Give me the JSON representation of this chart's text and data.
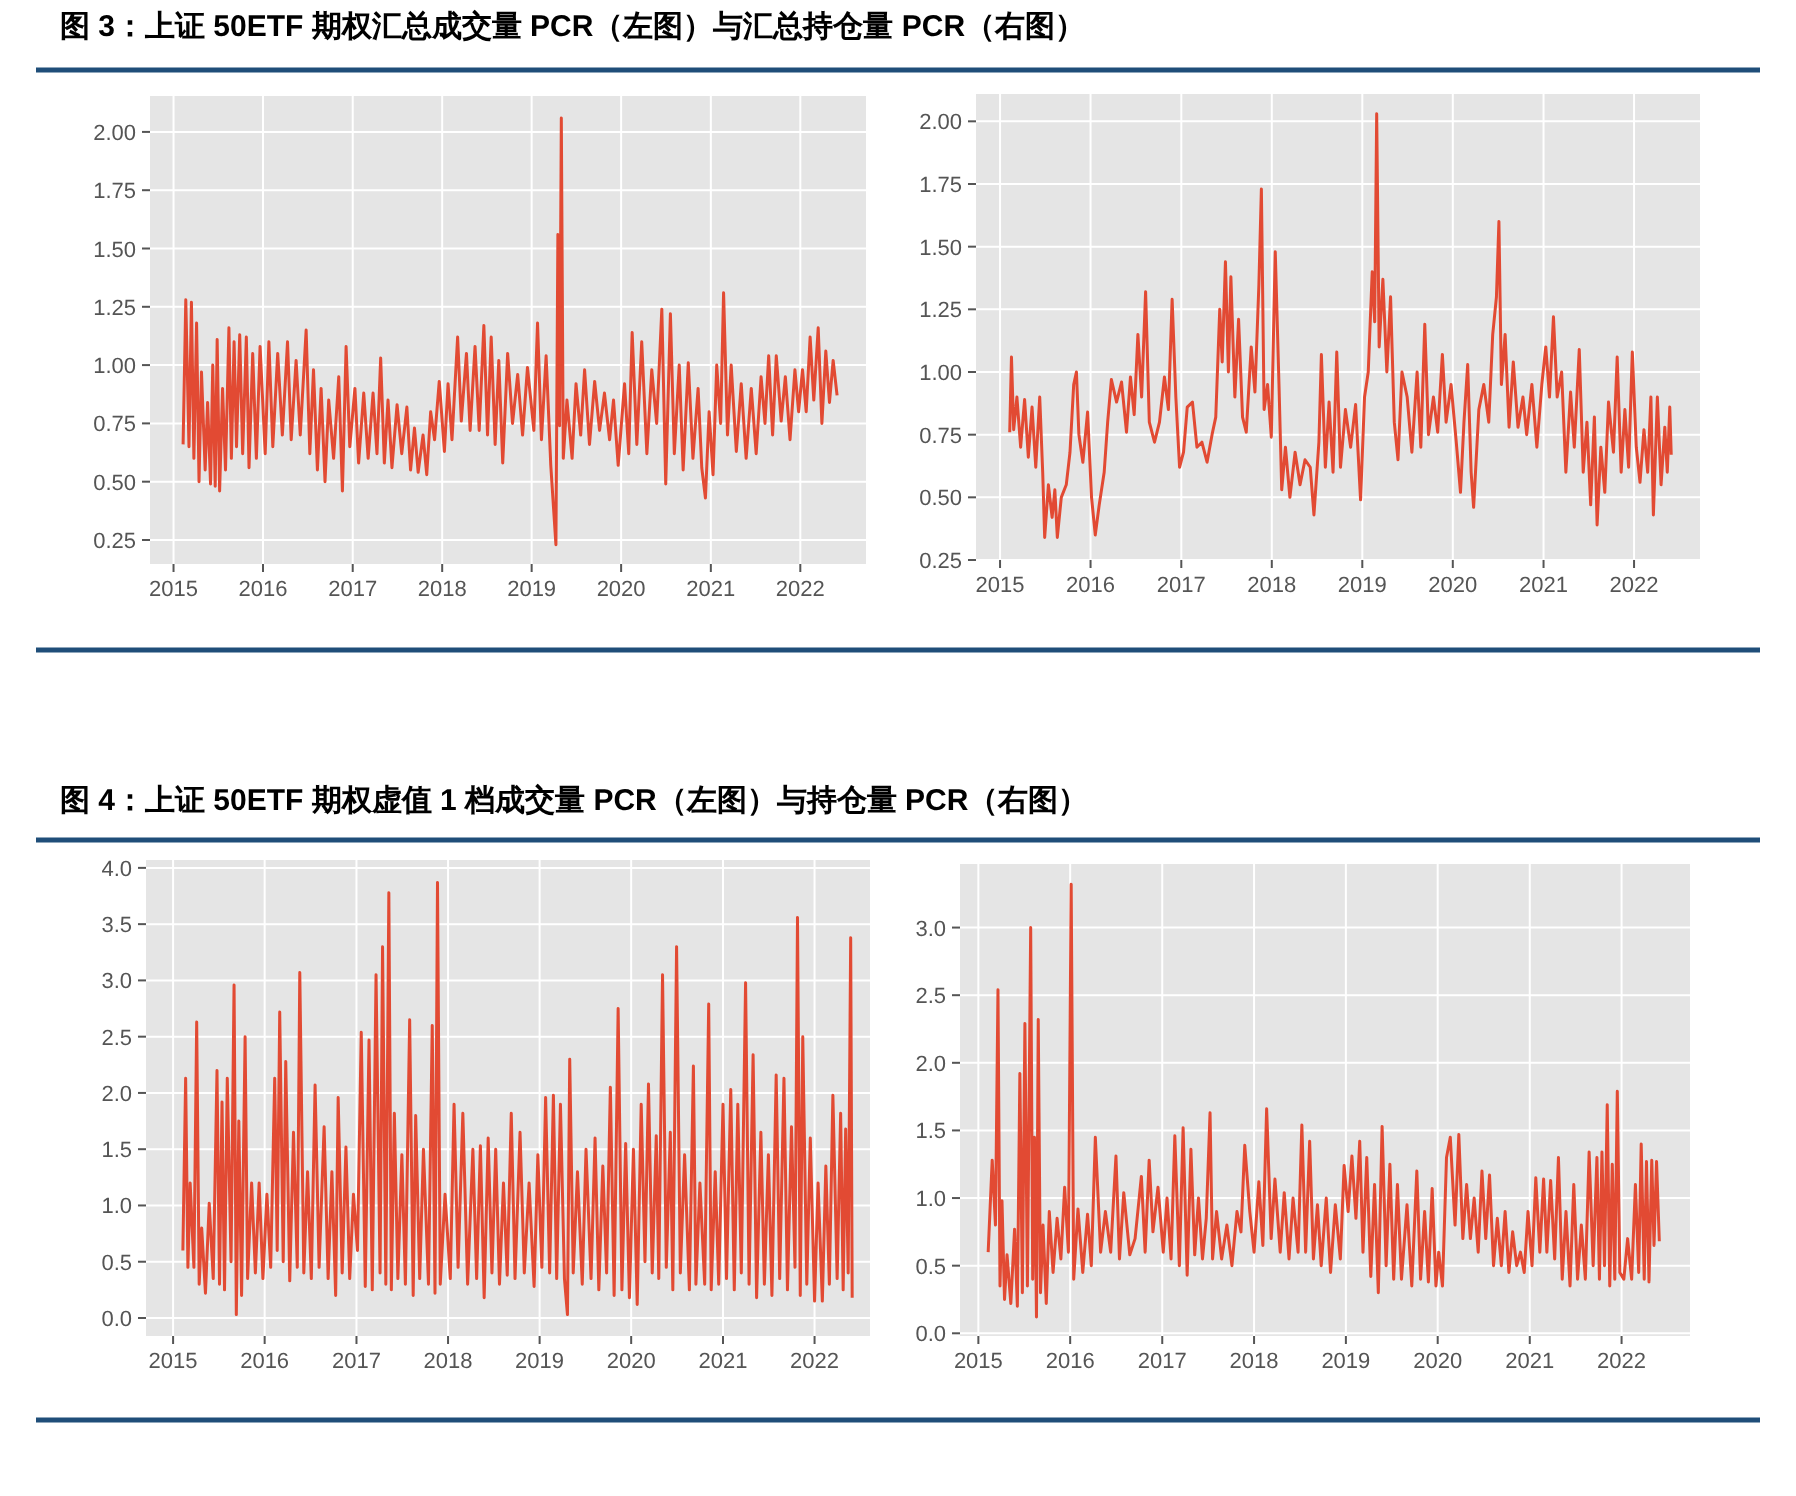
{
  "chart_data": [
    {
      "type": "line",
      "title": "图 3：上证 50ETF 期权汇总成交量 PCR（左图）与汇总持仓量 PCR（右图）",
      "xlim": [
        "2014-09-27",
        "2022-09-26"
      ],
      "xticks": [
        "2015",
        "2016",
        "2017",
        "2018",
        "2019",
        "2020",
        "2021",
        "2022"
      ],
      "ylim": [
        0.147,
        2.154
      ],
      "yticks": [
        {
          "value": 0.25,
          "label": "0.25"
        },
        {
          "value": 0.5,
          "label": "0.50"
        },
        {
          "value": 0.75,
          "label": "0.75"
        },
        {
          "value": 1,
          "label": "1.00"
        },
        {
          "value": 1.25,
          "label": "1.25"
        },
        {
          "value": 1.5,
          "label": "1.50"
        },
        {
          "value": 1.75,
          "label": "1.75"
        },
        {
          "value": 2,
          "label": "2.00"
        }
      ],
      "grid": true,
      "series": [
        {
          "color": "#e24a33",
          "x": [
            "2015-02-09",
            "2015-02-20",
            "2015-03-05",
            "2015-03-15",
            "2015-03-25",
            "2015-04-05",
            "2015-04-15",
            "2015-04-25",
            "2015-05-10",
            "2015-05-20",
            "2015-06-01",
            "2015-06-10",
            "2015-06-20",
            "2015-06-28",
            "2015-07-08",
            "2015-07-20",
            "2015-08-01",
            "2015-08-15",
            "2015-08-25",
            "2015-09-05",
            "2015-09-15",
            "2015-09-28",
            "2015-10-10",
            "2015-10-25",
            "2015-11-05",
            "2015-11-20",
            "2015-12-05",
            "2015-12-20",
            "2016-01-10",
            "2016-01-25",
            "2016-02-10",
            "2016-03-01",
            "2016-03-20",
            "2016-04-10",
            "2016-04-25",
            "2016-05-15",
            "2016-06-01",
            "2016-06-25",
            "2016-07-10",
            "2016-07-25",
            "2016-08-10",
            "2016-08-25",
            "2016-09-10",
            "2016-09-25",
            "2016-10-15",
            "2016-11-05",
            "2016-11-20",
            "2016-12-05",
            "2016-12-20",
            "2017-01-10",
            "2017-01-25",
            "2017-02-15",
            "2017-03-05",
            "2017-03-25",
            "2017-04-10",
            "2017-04-25",
            "2017-05-10",
            "2017-05-25",
            "2017-06-10",
            "2017-07-01",
            "2017-07-20",
            "2017-08-10",
            "2017-08-25",
            "2017-09-10",
            "2017-09-25",
            "2017-10-15",
            "2017-10-30",
            "2017-11-15",
            "2017-12-01",
            "2017-12-20",
            "2018-01-10",
            "2018-01-25",
            "2018-02-10",
            "2018-03-05",
            "2018-03-20",
            "2018-04-10",
            "2018-04-25",
            "2018-05-15",
            "2018-06-01",
            "2018-06-20",
            "2018-07-05",
            "2018-07-20",
            "2018-08-05",
            "2018-08-20",
            "2018-09-05",
            "2018-09-25",
            "2018-10-15",
            "2018-11-05",
            "2018-11-25",
            "2018-12-15",
            "2019-01-10",
            "2019-01-25",
            "2019-02-10",
            "2019-03-01",
            "2019-03-20",
            "2019-04-10",
            "2019-04-18",
            "2019-04-25",
            "2019-05-02",
            "2019-05-10",
            "2019-05-25",
            "2019-06-15",
            "2019-07-01",
            "2019-07-20",
            "2019-08-05",
            "2019-08-25",
            "2019-09-15",
            "2019-10-05",
            "2019-10-25",
            "2019-11-15",
            "2019-12-01",
            "2019-12-20",
            "2020-01-15",
            "2020-02-01",
            "2020-02-15",
            "2020-03-05",
            "2020-03-25",
            "2020-04-15",
            "2020-05-05",
            "2020-05-25",
            "2020-06-15",
            "2020-07-01",
            "2020-07-20",
            "2020-08-05",
            "2020-08-25",
            "2020-09-10",
            "2020-10-01",
            "2020-10-20",
            "2020-11-10",
            "2020-11-25",
            "2020-12-10",
            "2020-12-25",
            "2021-01-10",
            "2021-01-25",
            "2021-02-10",
            "2021-02-22",
            "2021-03-10",
            "2021-03-25",
            "2021-04-15",
            "2021-05-05",
            "2021-05-25",
            "2021-06-15",
            "2021-07-05",
            "2021-07-25",
            "2021-08-10",
            "2021-08-25",
            "2021-09-10",
            "2021-09-25",
            "2021-10-15",
            "2021-11-01",
            "2021-11-20",
            "2021-12-10",
            "2021-12-25",
            "2022-01-10",
            "2022-01-25",
            "2022-02-10",
            "2022-02-25",
            "2022-03-15",
            "2022-03-30",
            "2022-04-15",
            "2022-04-30",
            "2022-05-15",
            "2022-05-31"
          ],
          "values": [
            0.66,
            1.28,
            0.65,
            1.27,
            0.6,
            1.18,
            0.5,
            0.97,
            0.55,
            0.84,
            0.49,
            1.0,
            0.48,
            1.11,
            0.46,
            0.9,
            0.55,
            1.16,
            0.6,
            1.1,
            0.65,
            1.13,
            0.62,
            1.12,
            0.56,
            1.05,
            0.6,
            1.08,
            0.62,
            1.1,
            0.65,
            1.05,
            0.7,
            1.1,
            0.68,
            1.02,
            0.7,
            1.15,
            0.62,
            0.98,
            0.55,
            0.9,
            0.5,
            0.85,
            0.6,
            0.95,
            0.46,
            1.08,
            0.65,
            0.9,
            0.58,
            0.88,
            0.6,
            0.88,
            0.62,
            1.03,
            0.58,
            0.85,
            0.56,
            0.83,
            0.62,
            0.82,
            0.55,
            0.73,
            0.54,
            0.7,
            0.53,
            0.8,
            0.68,
            0.93,
            0.63,
            0.92,
            0.68,
            1.12,
            0.76,
            1.05,
            0.72,
            1.08,
            0.72,
            1.17,
            0.7,
            1.12,
            0.66,
            1.02,
            0.58,
            1.05,
            0.75,
            0.96,
            0.7,
            0.99,
            0.72,
            1.18,
            0.68,
            1.04,
            0.57,
            0.23,
            1.56,
            0.74,
            2.06,
            0.6,
            0.85,
            0.6,
            0.92,
            0.7,
            0.98,
            0.66,
            0.93,
            0.72,
            0.88,
            0.68,
            0.85,
            0.57,
            0.92,
            0.62,
            1.14,
            0.66,
            1.1,
            0.62,
            0.98,
            0.75,
            1.24,
            0.49,
            1.22,
            0.62,
            1.0,
            0.55,
            1.01,
            0.6,
            0.9,
            0.56,
            0.43,
            0.8,
            0.53,
            1.0,
            0.75,
            1.31,
            0.7,
            1.0,
            0.63,
            0.92,
            0.6,
            0.9,
            0.62,
            0.95,
            0.75,
            1.04,
            0.7,
            1.04,
            0.76,
            0.95,
            0.68,
            0.98,
            0.8,
            0.98,
            0.8,
            1.12,
            0.85,
            1.16,
            0.75,
            1.06,
            0.84,
            1.02,
            0.87
          ]
        }
      ]
    },
    {
      "type": "line",
      "xlim": [
        "2014-09-26",
        "2022-09-24"
      ],
      "xticks": [
        "2015",
        "2016",
        "2017",
        "2018",
        "2019",
        "2020",
        "2021",
        "2022"
      ],
      "ylim": [
        0.25,
        2.109
      ],
      "yticks": [
        {
          "value": 0.25,
          "label": "0.25"
        },
        {
          "value": 0.5,
          "label": "0.50"
        },
        {
          "value": 0.75,
          "label": "0.75"
        },
        {
          "value": 1,
          "label": "1.00"
        },
        {
          "value": 1.25,
          "label": "1.25"
        },
        {
          "value": 1.5,
          "label": "1.50"
        },
        {
          "value": 1.75,
          "label": "1.75"
        },
        {
          "value": 2,
          "label": "2.00"
        }
      ],
      "grid": true,
      "series": [
        {
          "color": "#e24a33",
          "x": [
            "2015-02-09",
            "2015-02-16",
            "2015-02-25",
            "2015-03-10",
            "2015-03-25",
            "2015-04-10",
            "2015-04-25",
            "2015-05-10",
            "2015-05-25",
            "2015-06-10",
            "2015-06-22",
            "2015-06-30",
            "2015-07-15",
            "2015-07-30",
            "2015-08-10",
            "2015-08-20",
            "2015-09-05",
            "2015-09-25",
            "2015-10-10",
            "2015-10-25",
            "2015-11-05",
            "2015-11-15",
            "2015-12-01",
            "2015-12-20",
            "2016-01-05",
            "2016-01-20",
            "2016-02-05",
            "2016-02-25",
            "2016-03-10",
            "2016-03-25",
            "2016-04-15",
            "2016-05-05",
            "2016-05-25",
            "2016-06-10",
            "2016-06-25",
            "2016-07-10",
            "2016-07-25",
            "2016-08-10",
            "2016-08-25",
            "2016-09-15",
            "2016-10-05",
            "2016-10-25",
            "2016-11-10",
            "2016-11-25",
            "2016-12-10",
            "2016-12-25",
            "2017-01-10",
            "2017-01-25",
            "2017-02-15",
            "2017-03-05",
            "2017-03-25",
            "2017-04-15",
            "2017-05-05",
            "2017-05-20",
            "2017-06-05",
            "2017-06-15",
            "2017-06-28",
            "2017-07-10",
            "2017-07-20",
            "2017-08-05",
            "2017-08-20",
            "2017-09-05",
            "2017-09-20",
            "2017-10-10",
            "2017-10-25",
            "2017-11-10",
            "2017-11-20",
            "2017-12-01",
            "2017-12-15",
            "2017-12-30",
            "2018-01-15",
            "2018-01-30",
            "2018-02-10",
            "2018-02-25",
            "2018-03-15",
            "2018-04-05",
            "2018-04-25",
            "2018-05-15",
            "2018-06-05",
            "2018-06-20",
            "2018-07-10",
            "2018-07-20",
            "2018-08-05",
            "2018-08-20",
            "2018-09-05",
            "2018-09-20",
            "2018-10-05",
            "2018-10-25",
            "2018-11-15",
            "2018-12-05",
            "2018-12-25",
            "2019-01-10",
            "2019-01-25",
            "2019-02-10",
            "2019-02-20",
            "2019-02-28",
            "2019-03-10",
            "2019-03-25",
            "2019-04-10",
            "2019-04-25",
            "2019-05-10",
            "2019-05-25",
            "2019-06-10",
            "2019-07-01",
            "2019-07-20",
            "2019-08-10",
            "2019-08-25",
            "2019-09-10",
            "2019-09-25",
            "2019-10-15",
            "2019-11-01",
            "2019-11-20",
            "2019-12-05",
            "2019-12-25",
            "2020-01-15",
            "2020-02-01",
            "2020-02-15",
            "2020-03-01",
            "2020-03-15",
            "2020-03-25",
            "2020-04-15",
            "2020-05-05",
            "2020-05-25",
            "2020-06-10",
            "2020-06-25",
            "2020-07-05",
            "2020-07-15",
            "2020-07-30",
            "2020-08-15",
            "2020-09-01",
            "2020-09-20",
            "2020-10-10",
            "2020-10-25",
            "2020-11-15",
            "2020-12-05",
            "2020-12-25",
            "2021-01-10",
            "2021-01-25",
            "2021-02-10",
            "2021-02-25",
            "2021-03-15",
            "2021-04-01",
            "2021-04-20",
            "2021-05-05",
            "2021-05-25",
            "2021-06-10",
            "2021-06-25",
            "2021-07-10",
            "2021-07-25",
            "2021-08-05",
            "2021-08-20",
            "2021-09-05",
            "2021-09-20",
            "2021-10-10",
            "2021-10-25",
            "2021-11-10",
            "2021-11-25",
            "2021-12-10",
            "2021-12-25",
            "2022-01-10",
            "2022-01-25",
            "2022-02-10",
            "2022-02-25",
            "2022-03-10",
            "2022-03-20",
            "2022-04-05",
            "2022-04-20",
            "2022-05-05",
            "2022-05-15",
            "2022-05-25",
            "2022-05-31"
          ],
          "values": [
            0.76,
            1.06,
            0.77,
            0.9,
            0.7,
            0.89,
            0.66,
            0.86,
            0.62,
            0.9,
            0.6,
            0.34,
            0.55,
            0.42,
            0.53,
            0.34,
            0.5,
            0.55,
            0.68,
            0.95,
            1.0,
            0.75,
            0.64,
            0.84,
            0.5,
            0.35,
            0.47,
            0.6,
            0.8,
            0.97,
            0.88,
            0.96,
            0.76,
            0.98,
            0.83,
            1.15,
            0.9,
            1.32,
            0.8,
            0.72,
            0.8,
            0.98,
            0.85,
            1.29,
            0.9,
            0.62,
            0.68,
            0.86,
            0.88,
            0.7,
            0.72,
            0.64,
            0.75,
            0.82,
            1.25,
            1.04,
            1.44,
            1.0,
            1.38,
            0.9,
            1.21,
            0.82,
            0.76,
            1.1,
            0.92,
            1.35,
            1.73,
            0.85,
            0.95,
            0.74,
            1.48,
            0.95,
            0.53,
            0.7,
            0.5,
            0.68,
            0.55,
            0.65,
            0.62,
            0.43,
            0.72,
            1.07,
            0.62,
            0.88,
            0.6,
            1.08,
            0.62,
            0.85,
            0.7,
            0.87,
            0.49,
            0.9,
            1.0,
            1.4,
            1.2,
            2.03,
            1.1,
            1.37,
            1.0,
            1.3,
            0.8,
            0.65,
            1.0,
            0.9,
            0.68,
            1.0,
            0.7,
            1.19,
            0.75,
            0.9,
            0.76,
            1.07,
            0.8,
            0.95,
            0.72,
            0.52,
            0.8,
            1.03,
            0.6,
            0.46,
            0.85,
            0.95,
            0.8,
            1.15,
            1.3,
            1.6,
            0.95,
            1.15,
            0.78,
            1.04,
            0.78,
            0.9,
            0.75,
            0.95,
            0.7,
            0.95,
            1.1,
            0.9,
            1.22,
            0.9,
            1.0,
            0.6,
            0.92,
            0.7,
            1.09,
            0.6,
            0.8,
            0.47,
            0.82,
            0.39,
            0.7,
            0.52,
            0.88,
            0.68,
            1.06,
            0.6,
            0.85,
            0.62,
            1.08,
            0.7,
            0.56,
            0.77,
            0.6,
            0.9,
            0.43,
            0.9,
            0.55,
            0.78,
            0.6,
            0.86,
            0.67
          ]
        }
      ]
    },
    {
      "type": "line",
      "title": "图 4：上证 50ETF 期权虚值 1 档成交量 PCR（左图）与持仓量 PCR（右图）",
      "xlim": [
        "2014-09-15",
        "2022-08-10"
      ],
      "xticks": [
        "2015",
        "2016",
        "2017",
        "2018",
        "2019",
        "2020",
        "2021",
        "2022"
      ],
      "ylim": [
        -0.16,
        4.07
      ],
      "yticks": [
        {
          "value": 0,
          "label": "0.0"
        },
        {
          "value": 0.5,
          "label": "0.5"
        },
        {
          "value": 1,
          "label": "1.0"
        },
        {
          "value": 1.5,
          "label": "1.5"
        },
        {
          "value": 2,
          "label": "2.0"
        },
        {
          "value": 2.5,
          "label": "2.5"
        },
        {
          "value": 3,
          "label": "3.0"
        },
        {
          "value": 3.5,
          "label": "3.5"
        },
        {
          "value": 4,
          "label": "4.0"
        }
      ],
      "grid": true,
      "series": [
        {
          "color": "#e24a33",
          "x": [
            "2015-02-09",
            "2015-02-20",
            "2015-03-01",
            "2015-03-10",
            "2015-03-25",
            "2015-04-05",
            "2015-04-15",
            "2015-04-25",
            "2015-05-10",
            "2015-05-25",
            "2015-06-10",
            "2015-06-25",
            "2015-07-05",
            "2015-07-15",
            "2015-07-25",
            "2015-08-05",
            "2015-08-20",
            "2015-09-01",
            "2015-09-10",
            "2015-09-20",
            "2015-10-01",
            "2015-10-15",
            "2015-10-25",
            "2015-11-10",
            "2015-11-25",
            "2015-12-10",
            "2015-12-25",
            "2016-01-10",
            "2016-01-25",
            "2016-02-10",
            "2016-02-20",
            "2016-03-01",
            "2016-03-15",
            "2016-03-25",
            "2016-04-10",
            "2016-04-25",
            "2016-05-10",
            "2016-05-20",
            "2016-06-05",
            "2016-06-20",
            "2016-07-05",
            "2016-07-20",
            "2016-08-05",
            "2016-08-25",
            "2016-09-10",
            "2016-09-25",
            "2016-10-10",
            "2016-10-20",
            "2016-11-05",
            "2016-11-20",
            "2016-12-05",
            "2016-12-20",
            "2017-01-05",
            "2017-01-20",
            "2017-02-05",
            "2017-02-20",
            "2017-03-05",
            "2017-03-20",
            "2017-04-05",
            "2017-04-15",
            "2017-04-28",
            "2017-05-10",
            "2017-05-20",
            "2017-06-01",
            "2017-06-15",
            "2017-07-01",
            "2017-07-15",
            "2017-08-01",
            "2017-08-15",
            "2017-08-25",
            "2017-09-10",
            "2017-09-25",
            "2017-10-15",
            "2017-10-30",
            "2017-11-10",
            "2017-11-20",
            "2017-12-01",
            "2017-12-20",
            "2018-01-10",
            "2018-01-25",
            "2018-02-10",
            "2018-03-01",
            "2018-03-20",
            "2018-04-10",
            "2018-04-25",
            "2018-05-10",
            "2018-05-25",
            "2018-06-10",
            "2018-06-25",
            "2018-07-10",
            "2018-07-25",
            "2018-08-10",
            "2018-08-25",
            "2018-09-10",
            "2018-09-25",
            "2018-10-15",
            "2018-11-01",
            "2018-11-20",
            "2018-12-10",
            "2018-12-25",
            "2019-01-10",
            "2019-01-25",
            "2019-02-10",
            "2019-02-25",
            "2019-03-10",
            "2019-03-25",
            "2019-04-10",
            "2019-04-22",
            "2019-05-01",
            "2019-05-15",
            "2019-06-01",
            "2019-06-20",
            "2019-07-05",
            "2019-07-25",
            "2019-08-10",
            "2019-08-25",
            "2019-09-10",
            "2019-09-25",
            "2019-10-10",
            "2019-10-25",
            "2019-11-10",
            "2019-11-25",
            "2019-12-10",
            "2019-12-25",
            "2020-01-10",
            "2020-01-25",
            "2020-02-10",
            "2020-02-25",
            "2020-03-10",
            "2020-03-25",
            "2020-04-10",
            "2020-04-20",
            "2020-05-05",
            "2020-05-20",
            "2020-06-05",
            "2020-06-15",
            "2020-06-30",
            "2020-07-15",
            "2020-08-01",
            "2020-08-20",
            "2020-09-05",
            "2020-09-15",
            "2020-10-01",
            "2020-10-20",
            "2020-11-05",
            "2020-11-15",
            "2020-12-01",
            "2020-12-15",
            "2021-01-01",
            "2021-01-15",
            "2021-02-01",
            "2021-02-15",
            "2021-03-01",
            "2021-03-15",
            "2021-04-01",
            "2021-04-15",
            "2021-05-01",
            "2021-05-15",
            "2021-06-01",
            "2021-06-15",
            "2021-07-01",
            "2021-07-15",
            "2021-08-01",
            "2021-08-15",
            "2021-09-01",
            "2021-09-15",
            "2021-10-01",
            "2021-10-15",
            "2021-10-25",
            "2021-11-05",
            "2021-11-15",
            "2021-12-01",
            "2021-12-15",
            "2022-01-01",
            "2022-01-15",
            "2022-02-01",
            "2022-02-15",
            "2022-03-01",
            "2022-03-15",
            "2022-04-01",
            "2022-04-15",
            "2022-04-25",
            "2022-05-05",
            "2022-05-15",
            "2022-05-25",
            "2022-05-31"
          ],
          "values": [
            0.6,
            2.13,
            0.45,
            1.2,
            0.45,
            2.63,
            0.3,
            0.8,
            0.22,
            1.02,
            0.35,
            2.2,
            0.3,
            1.92,
            0.25,
            2.13,
            0.5,
            2.96,
            0.03,
            1.75,
            0.2,
            2.5,
            0.35,
            1.2,
            0.4,
            1.2,
            0.35,
            1.1,
            0.45,
            2.13,
            0.6,
            2.72,
            0.5,
            2.28,
            0.33,
            1.65,
            0.45,
            3.07,
            0.4,
            1.3,
            0.35,
            2.07,
            0.45,
            1.7,
            0.35,
            1.3,
            0.2,
            1.96,
            0.4,
            1.52,
            0.35,
            1.1,
            0.6,
            2.54,
            0.28,
            2.47,
            0.25,
            3.05,
            0.4,
            3.3,
            0.3,
            3.78,
            0.25,
            1.82,
            0.35,
            1.45,
            0.3,
            2.65,
            0.2,
            1.8,
            0.35,
            1.5,
            0.3,
            2.6,
            0.22,
            3.87,
            0.3,
            1.1,
            0.35,
            1.9,
            0.45,
            1.82,
            0.3,
            1.5,
            0.35,
            1.53,
            0.18,
            1.6,
            0.4,
            1.5,
            0.3,
            1.2,
            0.38,
            1.82,
            0.35,
            1.65,
            0.4,
            1.2,
            0.28,
            1.45,
            0.45,
            1.96,
            0.4,
            1.98,
            0.35,
            1.9,
            0.35,
            0.03,
            2.3,
            0.4,
            1.3,
            0.3,
            1.5,
            0.35,
            1.6,
            0.25,
            1.35,
            0.4,
            2.05,
            0.2,
            2.75,
            0.25,
            1.55,
            0.18,
            1.5,
            0.12,
            1.9,
            0.5,
            2.08,
            0.4,
            1.62,
            0.35,
            3.05,
            0.45,
            1.65,
            0.25,
            3.3,
            0.4,
            1.45,
            0.25,
            2.24,
            0.3,
            1.2,
            0.3,
            2.79,
            0.25,
            1.3,
            0.3,
            1.9,
            0.35,
            2.03,
            0.25,
            1.9,
            0.4,
            2.98,
            0.3,
            2.34,
            0.18,
            1.65,
            0.3,
            1.45,
            0.2,
            2.16,
            0.35,
            2.13,
            0.25,
            1.7,
            0.45,
            3.56,
            0.2,
            2.5,
            0.3,
            1.6,
            0.15,
            1.2,
            0.15,
            1.35,
            0.3,
            1.98,
            0.35,
            1.82,
            0.25,
            1.68,
            0.4,
            3.38,
            0.18
          ]
        }
      ]
    },
    {
      "type": "line",
      "xlim": [
        "2014-10-20",
        "2022-09-30"
      ],
      "xticks": [
        "2015",
        "2016",
        "2017",
        "2018",
        "2019",
        "2020",
        "2021",
        "2022"
      ],
      "ylim": [
        -0.02,
        3.47
      ],
      "yticks": [
        {
          "value": 0,
          "label": "0.0"
        },
        {
          "value": 0.5,
          "label": "0.5"
        },
        {
          "value": 1,
          "label": "1.0"
        },
        {
          "value": 1.5,
          "label": "1.5"
        },
        {
          "value": 2,
          "label": "2.0"
        },
        {
          "value": 2.5,
          "label": "2.5"
        },
        {
          "value": 3,
          "label": "3.0"
        }
      ],
      "grid": true,
      "series": [
        {
          "color": "#e24a33",
          "x": [
            "2015-02-09",
            "2015-02-25",
            "2015-03-10",
            "2015-03-20",
            "2015-03-28",
            "2015-04-05",
            "2015-04-15",
            "2015-04-25",
            "2015-05-10",
            "2015-05-25",
            "2015-06-05",
            "2015-06-15",
            "2015-06-25",
            "2015-07-05",
            "2015-07-15",
            "2015-07-28",
            "2015-08-05",
            "2015-08-12",
            "2015-08-20",
            "2015-08-27",
            "2015-09-05",
            "2015-09-15",
            "2015-09-28",
            "2015-10-10",
            "2015-10-25",
            "2015-11-10",
            "2015-11-25",
            "2015-12-10",
            "2015-12-25",
            "2016-01-05",
            "2016-01-15",
            "2016-02-01",
            "2016-02-20",
            "2016-03-10",
            "2016-03-25",
            "2016-04-10",
            "2016-05-01",
            "2016-05-20",
            "2016-06-10",
            "2016-07-01",
            "2016-07-15",
            "2016-08-01",
            "2016-08-25",
            "2016-09-15",
            "2016-10-10",
            "2016-10-25",
            "2016-11-10",
            "2016-11-25",
            "2016-12-15",
            "2017-01-05",
            "2017-01-20",
            "2017-02-05",
            "2017-02-20",
            "2017-03-10",
            "2017-03-25",
            "2017-04-10",
            "2017-04-25",
            "2017-05-10",
            "2017-05-25",
            "2017-06-10",
            "2017-06-25",
            "2017-07-10",
            "2017-07-20",
            "2017-08-05",
            "2017-08-25",
            "2017-09-15",
            "2017-10-05",
            "2017-10-25",
            "2017-11-10",
            "2017-11-25",
            "2017-12-15",
            "2018-01-01",
            "2018-01-20",
            "2018-02-05",
            "2018-02-20",
            "2018-03-10",
            "2018-03-25",
            "2018-04-15",
            "2018-05-01",
            "2018-05-20",
            "2018-06-05",
            "2018-06-25",
            "2018-07-10",
            "2018-07-25",
            "2018-08-10",
            "2018-08-25",
            "2018-09-10",
            "2018-09-25",
            "2018-10-15",
            "2018-11-01",
            "2018-11-20",
            "2018-12-10",
            "2018-12-25",
            "2019-01-10",
            "2019-01-25",
            "2019-02-10",
            "2019-02-25",
            "2019-03-10",
            "2019-03-25",
            "2019-04-10",
            "2019-04-25",
            "2019-05-10",
            "2019-05-25",
            "2019-06-10",
            "2019-06-25",
            "2019-07-10",
            "2019-07-25",
            "2019-08-10",
            "2019-09-01",
            "2019-09-20",
            "2019-10-10",
            "2019-10-25",
            "2019-11-10",
            "2019-11-25",
            "2019-12-10",
            "2019-12-25",
            "2020-01-05",
            "2020-01-20",
            "2020-02-05",
            "2020-02-20",
            "2020-03-10",
            "2020-03-25",
            "2020-04-10",
            "2020-04-25",
            "2020-05-10",
            "2020-05-25",
            "2020-06-10",
            "2020-06-25",
            "2020-07-10",
            "2020-07-25",
            "2020-08-10",
            "2020-08-25",
            "2020-09-10",
            "2020-09-25",
            "2020-10-10",
            "2020-10-25",
            "2020-11-10",
            "2020-11-25",
            "2020-12-10",
            "2020-12-25",
            "2021-01-10",
            "2021-01-25",
            "2021-02-10",
            "2021-02-25",
            "2021-03-10",
            "2021-03-25",
            "2021-04-10",
            "2021-04-25",
            "2021-05-10",
            "2021-05-25",
            "2021-06-10",
            "2021-06-25",
            "2021-07-10",
            "2021-07-25",
            "2021-08-10",
            "2021-08-25",
            "2021-09-10",
            "2021-09-25",
            "2021-10-05",
            "2021-10-15",
            "2021-10-25",
            "2021-11-05",
            "2021-11-15",
            "2021-11-25",
            "2021-12-05",
            "2021-12-15",
            "2021-12-25",
            "2022-01-10",
            "2022-01-25",
            "2022-02-10",
            "2022-02-25",
            "2022-03-10",
            "2022-03-20",
            "2022-04-01",
            "2022-04-10",
            "2022-04-20",
            "2022-05-01",
            "2022-05-10",
            "2022-05-20",
            "2022-05-31"
          ],
          "values": [
            0.6,
            1.28,
            0.8,
            2.54,
            0.35,
            0.98,
            0.25,
            0.58,
            0.22,
            0.77,
            0.2,
            1.92,
            0.3,
            2.29,
            0.35,
            3.0,
            0.4,
            1.45,
            0.12,
            2.32,
            0.3,
            0.8,
            0.22,
            0.9,
            0.45,
            0.85,
            0.55,
            1.08,
            0.6,
            3.32,
            0.4,
            0.92,
            0.45,
            0.88,
            0.5,
            1.45,
            0.6,
            0.9,
            0.6,
            1.31,
            0.55,
            1.04,
            0.58,
            0.7,
            1.16,
            0.6,
            1.28,
            0.75,
            1.08,
            0.6,
            1.0,
            0.55,
            1.46,
            0.5,
            1.52,
            0.43,
            1.36,
            0.58,
            1.0,
            0.55,
            0.85,
            1.63,
            0.55,
            0.9,
            0.55,
            0.8,
            0.5,
            0.9,
            0.75,
            1.39,
            0.9,
            0.6,
            1.12,
            0.65,
            1.66,
            0.7,
            1.14,
            0.6,
            1.04,
            0.55,
            1.0,
            0.6,
            1.54,
            0.6,
            1.42,
            0.55,
            0.95,
            0.5,
            1.0,
            0.45,
            0.95,
            0.55,
            1.24,
            0.9,
            1.31,
            0.85,
            1.42,
            0.6,
            1.3,
            0.42,
            1.1,
            0.3,
            1.53,
            0.5,
            1.25,
            0.4,
            1.1,
            0.4,
            0.95,
            0.35,
            1.2,
            0.4,
            0.9,
            0.38,
            1.07,
            0.35,
            0.6,
            0.35,
            1.3,
            1.45,
            0.8,
            1.47,
            0.7,
            1.1,
            0.7,
            1.0,
            0.6,
            1.2,
            0.7,
            1.17,
            0.5,
            0.85,
            0.5,
            0.9,
            0.45,
            0.75,
            0.5,
            0.6,
            0.45,
            0.9,
            0.5,
            1.15,
            0.6,
            1.14,
            0.6,
            1.13,
            0.55,
            1.3,
            0.4,
            0.9,
            0.35,
            1.1,
            0.4,
            0.8,
            0.4,
            1.34,
            0.5,
            1.3,
            0.4,
            1.34,
            0.5,
            1.69,
            0.35,
            1.25,
            0.4,
            1.79,
            0.45,
            0.4,
            0.7,
            0.4,
            1.1,
            0.45,
            1.4,
            0.4,
            1.27,
            0.38,
            1.28,
            0.65,
            1.27,
            0.68
          ]
        }
      ]
    }
  ]
}
